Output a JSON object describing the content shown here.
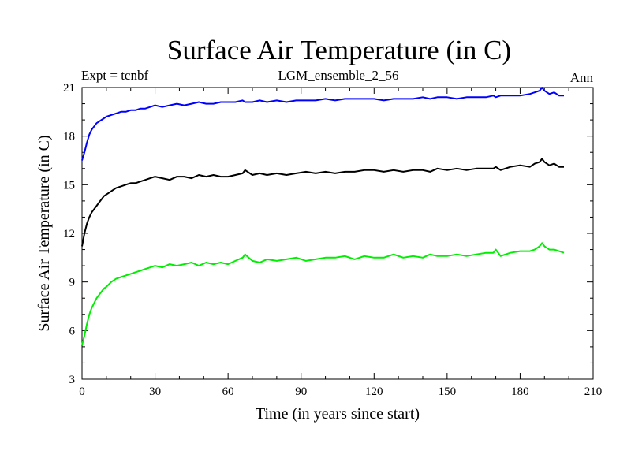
{
  "chart_data": {
    "type": "line",
    "title": "Surface Air Temperature (in C)",
    "subtitle_left": "Expt = tcnbf",
    "subtitle_center": "LGM_ensemble_2_56",
    "subtitle_right": "Ann",
    "xlabel": "Time (in years since start)",
    "ylabel": "Surface Air Temperature (in C)",
    "xlim": [
      0,
      210
    ],
    "ylim": [
      3,
      21
    ],
    "xticks": [
      0,
      30,
      60,
      90,
      120,
      150,
      180,
      210
    ],
    "yticks": [
      3,
      6,
      9,
      12,
      15,
      18,
      21
    ],
    "x": [
      0,
      1,
      2,
      3,
      4,
      5,
      6,
      7,
      8,
      9,
      10,
      12,
      14,
      16,
      18,
      20,
      22,
      24,
      26,
      28,
      30,
      33,
      36,
      39,
      42,
      45,
      48,
      51,
      54,
      57,
      60,
      63,
      66,
      67,
      70,
      73,
      76,
      80,
      84,
      88,
      92,
      96,
      100,
      104,
      108,
      112,
      116,
      120,
      124,
      128,
      132,
      136,
      140,
      143,
      146,
      150,
      154,
      158,
      162,
      166,
      169,
      170,
      172,
      176,
      180,
      184,
      186,
      188,
      189,
      190,
      192,
      194,
      196,
      198
    ],
    "series": [
      {
        "name": "blue",
        "color": "#0000ff",
        "values": [
          16.5,
          17.0,
          17.6,
          18.1,
          18.4,
          18.6,
          18.8,
          18.9,
          19.0,
          19.1,
          19.2,
          19.3,
          19.4,
          19.5,
          19.5,
          19.6,
          19.6,
          19.7,
          19.7,
          19.8,
          19.9,
          19.8,
          19.9,
          20.0,
          19.9,
          20.0,
          20.1,
          20.0,
          20.0,
          20.1,
          20.1,
          20.1,
          20.2,
          20.1,
          20.1,
          20.2,
          20.1,
          20.2,
          20.1,
          20.2,
          20.2,
          20.2,
          20.3,
          20.2,
          20.3,
          20.3,
          20.3,
          20.3,
          20.2,
          20.3,
          20.3,
          20.3,
          20.4,
          20.3,
          20.4,
          20.4,
          20.3,
          20.4,
          20.4,
          20.4,
          20.5,
          20.4,
          20.5,
          20.5,
          20.5,
          20.6,
          20.7,
          20.8,
          21.0,
          20.8,
          20.6,
          20.7,
          20.5,
          20.5
        ]
      },
      {
        "name": "black",
        "color": "#000000",
        "values": [
          11.2,
          12.0,
          12.6,
          13.0,
          13.3,
          13.5,
          13.7,
          13.9,
          14.1,
          14.3,
          14.4,
          14.6,
          14.8,
          14.9,
          15.0,
          15.1,
          15.1,
          15.2,
          15.3,
          15.4,
          15.5,
          15.4,
          15.3,
          15.5,
          15.5,
          15.4,
          15.6,
          15.5,
          15.6,
          15.5,
          15.5,
          15.6,
          15.7,
          15.9,
          15.6,
          15.7,
          15.6,
          15.7,
          15.6,
          15.7,
          15.8,
          15.7,
          15.8,
          15.7,
          15.8,
          15.8,
          15.9,
          15.9,
          15.8,
          15.9,
          15.8,
          15.9,
          15.9,
          15.8,
          16.0,
          15.9,
          16.0,
          15.9,
          16.0,
          16.0,
          16.0,
          16.1,
          15.9,
          16.1,
          16.2,
          16.1,
          16.3,
          16.4,
          16.6,
          16.4,
          16.2,
          16.3,
          16.1,
          16.1
        ]
      },
      {
        "name": "green",
        "color": "#00ee00",
        "values": [
          5.1,
          5.7,
          6.4,
          7.0,
          7.4,
          7.7,
          8.0,
          8.2,
          8.4,
          8.6,
          8.7,
          9.0,
          9.2,
          9.3,
          9.4,
          9.5,
          9.6,
          9.7,
          9.8,
          9.9,
          10.0,
          9.9,
          10.1,
          10.0,
          10.1,
          10.2,
          10.0,
          10.2,
          10.1,
          10.2,
          10.1,
          10.3,
          10.5,
          10.7,
          10.3,
          10.2,
          10.4,
          10.3,
          10.4,
          10.5,
          10.3,
          10.4,
          10.5,
          10.5,
          10.6,
          10.4,
          10.6,
          10.5,
          10.5,
          10.7,
          10.5,
          10.6,
          10.5,
          10.7,
          10.6,
          10.6,
          10.7,
          10.6,
          10.7,
          10.8,
          10.8,
          11.0,
          10.6,
          10.8,
          10.9,
          10.9,
          11.0,
          11.2,
          11.4,
          11.2,
          11.0,
          11.0,
          10.9,
          10.8
        ]
      }
    ]
  }
}
